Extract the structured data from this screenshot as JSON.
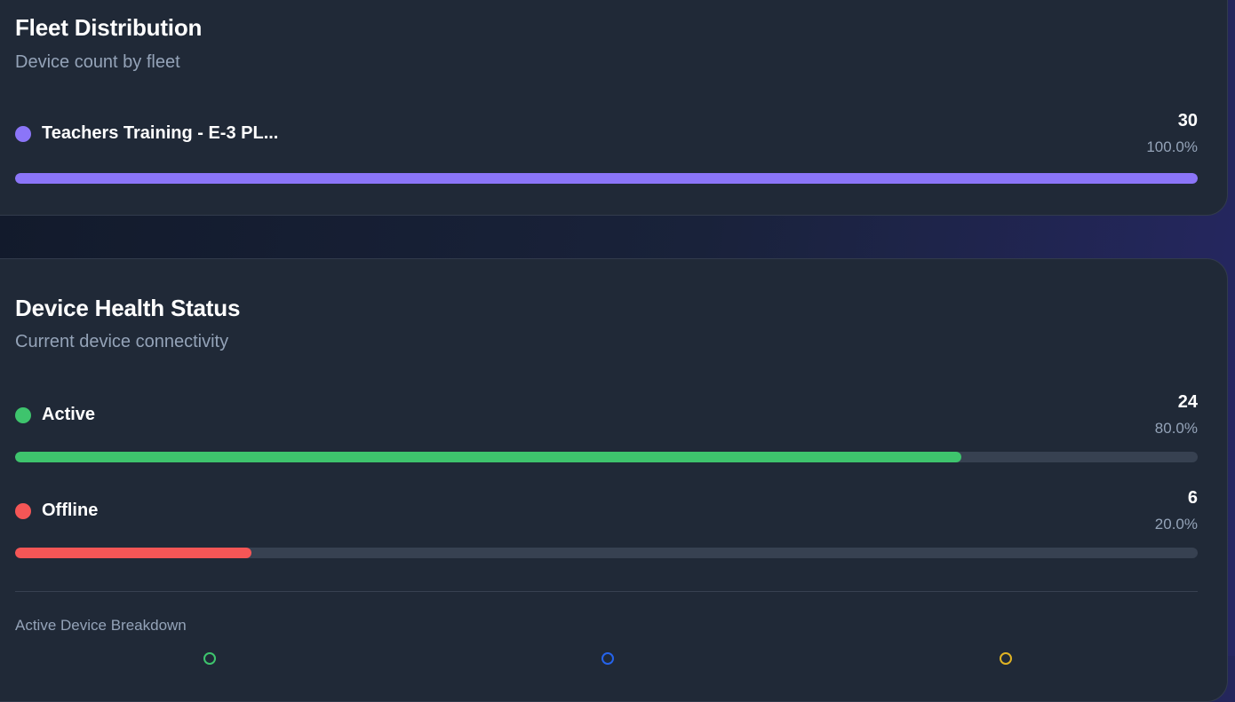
{
  "fleet": {
    "title": "Fleet Distribution",
    "subtitle": "Device count by fleet",
    "items": [
      {
        "label": "Teachers Training - E-3 PL...",
        "count": "30",
        "percent": "100.0%",
        "fraction": 1.0,
        "color": "#8b75f8"
      }
    ]
  },
  "health": {
    "title": "Device Health Status",
    "subtitle": "Current device connectivity",
    "items": [
      {
        "label": "Active",
        "count": "24",
        "percent": "80.0%",
        "fraction": 0.8,
        "color": "#3ec46d"
      },
      {
        "label": "Offline",
        "count": "6",
        "percent": "20.0%",
        "fraction": 0.2,
        "color": "#f55656"
      }
    ],
    "breakdown_title": "Active Device Breakdown",
    "breakdown_colors": [
      "#3ec46d",
      "#2563eb",
      "#e0b324"
    ]
  }
}
